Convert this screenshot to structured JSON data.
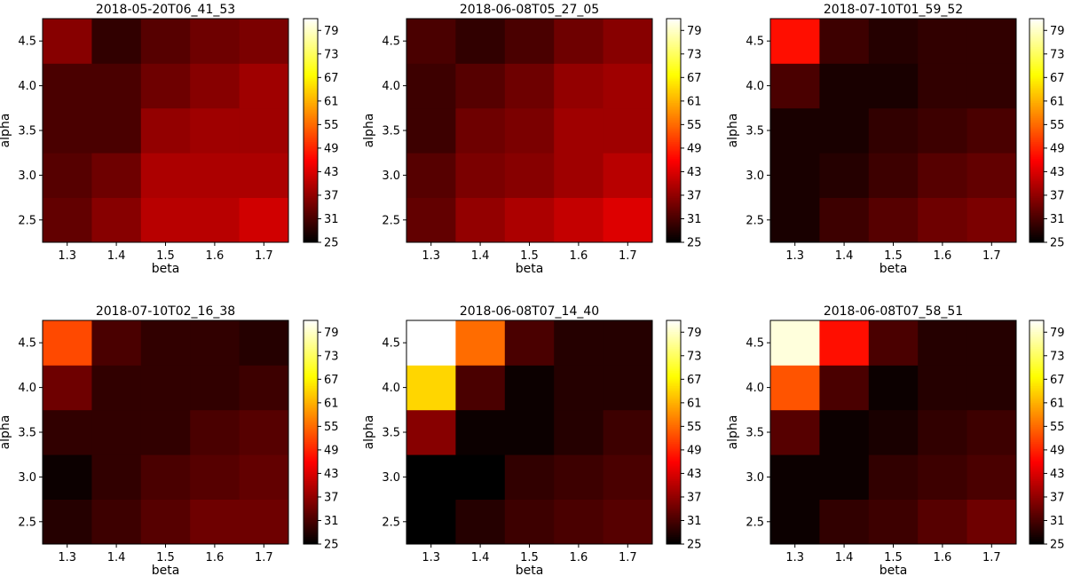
{
  "colormap_name": "hot",
  "chart_data": [
    {
      "type": "heatmap",
      "title": "2018-05-20T06_41_53",
      "xlabel": "beta",
      "ylabel": "alpha",
      "x_categories": [
        "1.3",
        "1.4",
        "1.5",
        "1.6",
        "1.7"
      ],
      "y_categories": [
        "2.5",
        "3.0",
        "3.5",
        "4.0",
        "4.5"
      ],
      "y_order": "bottom-to-top",
      "colorbar_ticks": [
        "25",
        "31",
        "37",
        "43",
        "49",
        "55",
        "61",
        "67",
        "73",
        "79"
      ],
      "colorbar_range": [
        25,
        82
      ],
      "values": [
        [
          33,
          36,
          40,
          40,
          42
        ],
        [
          32,
          34,
          39,
          39,
          39
        ],
        [
          31,
          31,
          37,
          38,
          38
        ],
        [
          31,
          31,
          34,
          36,
          38
        ],
        [
          36,
          29,
          32,
          34,
          35
        ]
      ]
    },
    {
      "type": "heatmap",
      "title": "2018-06-08T05_27_05",
      "xlabel": "beta",
      "ylabel": "alpha",
      "x_categories": [
        "1.3",
        "1.4",
        "1.5",
        "1.6",
        "1.7"
      ],
      "y_categories": [
        "2.5",
        "3.0",
        "3.5",
        "4.0",
        "4.5"
      ],
      "y_order": "bottom-to-top",
      "colorbar_ticks": [
        "25",
        "31",
        "37",
        "43",
        "49",
        "55",
        "61",
        "67",
        "73",
        "79"
      ],
      "colorbar_range": [
        25,
        82
      ],
      "values": [
        [
          33,
          37,
          39,
          41,
          43
        ],
        [
          32,
          35,
          36,
          38,
          40
        ],
        [
          30,
          34,
          35,
          38,
          38
        ],
        [
          30,
          32,
          34,
          37,
          38
        ],
        [
          31,
          29,
          31,
          34,
          36
        ]
      ]
    },
    {
      "type": "heatmap",
      "title": "2018-07-10T01_59_52",
      "xlabel": "beta",
      "ylabel": "alpha",
      "x_categories": [
        "1.3",
        "1.4",
        "1.5",
        "1.6",
        "1.7"
      ],
      "y_categories": [
        "2.5",
        "3.0",
        "3.5",
        "4.0",
        "4.5"
      ],
      "y_order": "bottom-to-top",
      "colorbar_ticks": [
        "25",
        "31",
        "37",
        "43",
        "49",
        "55",
        "61",
        "67",
        "73",
        "79"
      ],
      "colorbar_range": [
        25,
        82
      ],
      "values": [
        [
          27,
          30,
          32,
          34,
          35
        ],
        [
          27,
          28,
          30,
          32,
          33
        ],
        [
          27,
          27,
          29,
          30,
          31
        ],
        [
          31,
          27,
          27,
          29,
          29
        ],
        [
          47,
          30,
          28,
          29,
          29
        ]
      ]
    },
    {
      "type": "heatmap",
      "title": "2018-07-10T02_16_38",
      "xlabel": "beta",
      "ylabel": "alpha",
      "x_categories": [
        "1.3",
        "1.4",
        "1.5",
        "1.6",
        "1.7"
      ],
      "y_categories": [
        "2.5",
        "3.0",
        "3.5",
        "4.0",
        "4.5"
      ],
      "y_order": "bottom-to-top",
      "colorbar_ticks": [
        "25",
        "31",
        "37",
        "43",
        "49",
        "55",
        "61",
        "67",
        "73",
        "79"
      ],
      "colorbar_range": [
        25,
        82
      ],
      "values": [
        [
          28,
          30,
          32,
          34,
          34
        ],
        [
          26,
          29,
          31,
          32,
          33
        ],
        [
          29,
          29,
          29,
          31,
          32
        ],
        [
          34,
          29,
          29,
          29,
          30
        ],
        [
          52,
          31,
          29,
          29,
          28
        ]
      ]
    },
    {
      "type": "heatmap",
      "title": "2018-06-08T07_14_40",
      "xlabel": "beta",
      "ylabel": "alpha",
      "x_categories": [
        "1.3",
        "1.4",
        "1.5",
        "1.6",
        "1.7"
      ],
      "y_categories": [
        "2.5",
        "3.0",
        "3.5",
        "4.0",
        "4.5"
      ],
      "y_order": "bottom-to-top",
      "colorbar_ticks": [
        "25",
        "31",
        "37",
        "43",
        "49",
        "55",
        "61",
        "67",
        "73",
        "79"
      ],
      "colorbar_range": [
        25,
        82
      ],
      "values": [
        [
          25,
          28,
          30,
          31,
          32
        ],
        [
          25,
          25,
          29,
          30,
          31
        ],
        [
          36,
          26,
          26,
          28,
          30
        ],
        [
          64,
          31,
          26,
          28,
          28
        ],
        [
          82,
          55,
          31,
          28,
          28
        ]
      ]
    },
    {
      "type": "heatmap",
      "title": "2018-06-08T07_58_51",
      "xlabel": "beta",
      "ylabel": "alpha",
      "x_categories": [
        "1.3",
        "1.4",
        "1.5",
        "1.6",
        "1.7"
      ],
      "y_categories": [
        "2.5",
        "3.0",
        "3.5",
        "4.0",
        "4.5"
      ],
      "y_order": "bottom-to-top",
      "colorbar_ticks": [
        "25",
        "31",
        "37",
        "43",
        "49",
        "55",
        "61",
        "67",
        "73",
        "79"
      ],
      "colorbar_range": [
        25,
        82
      ],
      "values": [
        [
          26,
          29,
          30,
          32,
          34
        ],
        [
          26,
          26,
          29,
          30,
          31
        ],
        [
          32,
          26,
          27,
          29,
          30
        ],
        [
          53,
          31,
          26,
          28,
          28
        ],
        [
          80,
          47,
          31,
          28,
          28
        ]
      ]
    }
  ]
}
